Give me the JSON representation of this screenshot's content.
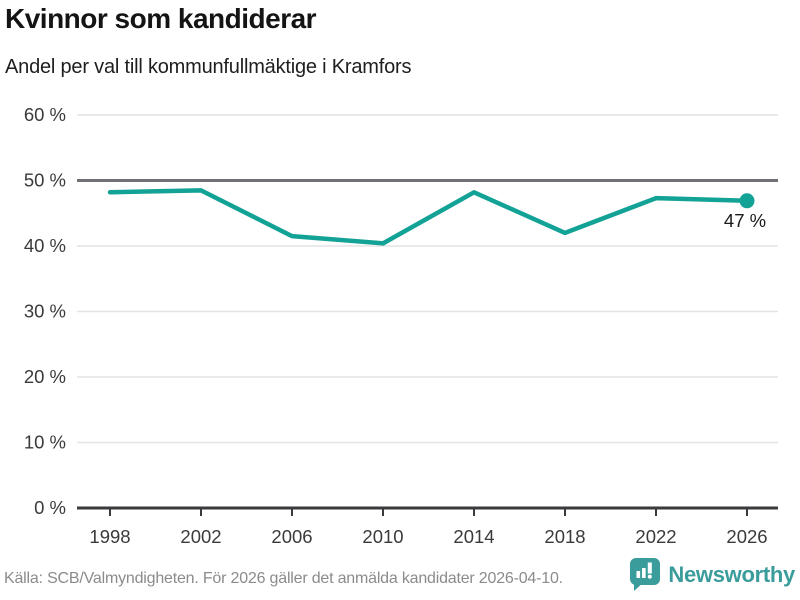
{
  "header": {
    "title": "Kvinnor som kandiderar",
    "subtitle": "Andel per val till kommunfullmäktige i Kramfors"
  },
  "chart_data": {
    "type": "line",
    "title": "Kvinnor som kandiderar",
    "subtitle": "Andel per val till kommunfullmäktige i Kramfors",
    "x": [
      "1998",
      "2002",
      "2006",
      "2010",
      "2014",
      "2018",
      "2022",
      "2026"
    ],
    "series": [
      {
        "values": [
          48.2,
          48.5,
          41.5,
          40.4,
          48.2,
          42.0,
          47.3,
          46.9
        ]
      }
    ],
    "ylim": [
      0,
      60
    ],
    "ytick_step": 10,
    "ytick_suffix": " %",
    "grid": "horizontal",
    "reference_line": 50,
    "end_label": "47 %",
    "line_color": "#12a296",
    "grid_color": "#e4e4e5",
    "reference_line_color": "#717176",
    "axis_color": "#3a3a3d",
    "tick_label_color": "#3a3a3a",
    "end_label_color": "#1a1a1a",
    "legend": "none"
  },
  "footer": {
    "source": "Källa: SCB/Valmyndigheten. För 2026 gäller det anmälda kandidater 2026-04-10.",
    "brand": "Newsworthy",
    "brand_color": "#3b9d9b",
    "logo_icon": "bar-chart-speech-bubble-icon"
  }
}
